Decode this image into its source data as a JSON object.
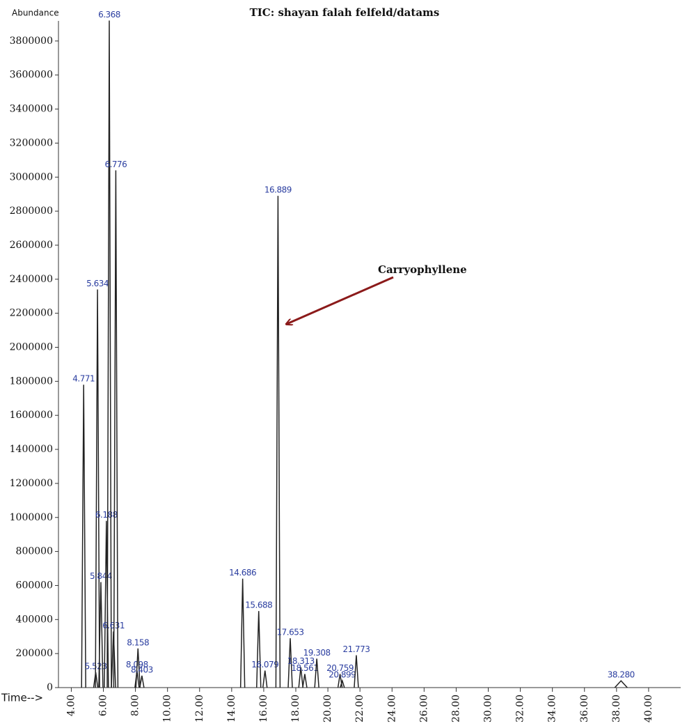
{
  "chart_data": {
    "type": "chromatogram",
    "title": "TIC: shayan falah felfeld/datams",
    "y_label": "Abundance",
    "x_label": "Time-->",
    "annotation": "Carryophyllene",
    "color": "#222222",
    "label_color": "#2b3ea0",
    "x": [
      4.771,
      5.523,
      5.634,
      5.844,
      6.188,
      6.368,
      6.631,
      6.776,
      8.098,
      8.158,
      8.403,
      14.686,
      15.688,
      16.079,
      16.889,
      17.653,
      18.313,
      18.561,
      19.308,
      20.759,
      20.899,
      21.773,
      38.28
    ],
    "peak_labels": [
      "4.771",
      "5.523",
      "5.634",
      "5.844",
      "6.188",
      "6.368",
      "6.631",
      "6.776",
      "8.098",
      "8.158",
      "8.403",
      "14.686",
      "15.688",
      "16.079",
      "16.889",
      "17.653",
      "18.313",
      "18.561",
      "19.308",
      "20.759",
      "20.899",
      "21.773",
      "38.280"
    ],
    "values": [
      1780000,
      90000,
      2340000,
      620000,
      980000,
      3920000,
      330000,
      3040000,
      100000,
      230000,
      70000,
      640000,
      450000,
      100000,
      2890000,
      290000,
      120000,
      80000,
      170000,
      80000,
      40000,
      190000,
      40000
    ],
    "xlim": [
      3.2,
      42
    ],
    "ylim": [
      0,
      4000000
    ],
    "xticks": [
      {
        "value": 4,
        "label": "4.00"
      },
      {
        "value": 6,
        "label": "6.00"
      },
      {
        "value": 8,
        "label": "8.00"
      },
      {
        "value": 10,
        "label": "10.00"
      },
      {
        "value": 12,
        "label": "12.00"
      },
      {
        "value": 14,
        "label": "14.00"
      },
      {
        "value": 16,
        "label": "16.00"
      },
      {
        "value": 18,
        "label": "18.00"
      },
      {
        "value": 20,
        "label": "20.00"
      },
      {
        "value": 22,
        "label": "22.00"
      },
      {
        "value": 24,
        "label": "24.00"
      },
      {
        "value": 26,
        "label": "26.00"
      },
      {
        "value": 28,
        "label": "28.00"
      },
      {
        "value": 30,
        "label": "30.00"
      },
      {
        "value": 32,
        "label": "32.00"
      },
      {
        "value": 34,
        "label": "34.00"
      },
      {
        "value": 36,
        "label": "36.00"
      },
      {
        "value": 38,
        "label": "38.00"
      },
      {
        "value": 40,
        "label": "40.00"
      }
    ],
    "yticks": [
      0,
      200000,
      400000,
      600000,
      800000,
      1000000,
      1200000,
      1400000,
      1600000,
      1800000,
      2000000,
      2200000,
      2400000,
      2600000,
      2800000,
      3000000,
      3200000,
      3400000,
      3600000,
      3800000
    ]
  }
}
